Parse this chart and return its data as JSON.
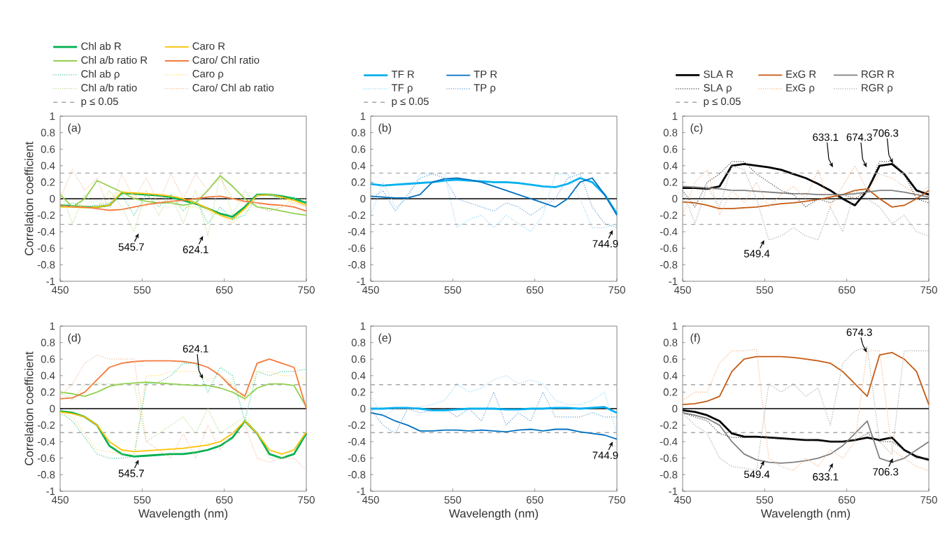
{
  "chart_data": [
    {
      "type": "line",
      "title": "(a)",
      "ylabel": "Correlation coefficient",
      "legend": "top",
      "xlim": [
        450,
        750
      ],
      "ylim": [
        -1,
        1
      ],
      "xticks": [
        450,
        550,
        650,
        750
      ],
      "yticks": [
        -1,
        -0.8,
        -0.6,
        -0.4,
        -0.2,
        0,
        0.2,
        0.4,
        0.6,
        0.8,
        1
      ],
      "x": [
        450,
        465,
        480,
        495,
        510,
        525,
        540,
        555,
        570,
        585,
        600,
        615,
        630,
        645,
        660,
        675,
        690,
        705,
        720,
        735,
        750
      ],
      "series": [
        {
          "name": "Chl ab R",
          "color": "#00b050",
          "line_style": "solid",
          "values": [
            -0.08,
            -0.09,
            -0.1,
            -0.1,
            -0.08,
            0.07,
            0.06,
            0.05,
            0.04,
            0.02,
            -0.02,
            -0.06,
            -0.12,
            -0.18,
            -0.22,
            -0.1,
            0.05,
            0.05,
            0.03,
            0.0,
            -0.05
          ]
        },
        {
          "name": "Caro R",
          "color": "#ffc000",
          "line_style": "solid",
          "values": [
            -0.1,
            -0.1,
            -0.11,
            -0.1,
            -0.08,
            0.08,
            0.07,
            0.06,
            0.05,
            0.03,
            0.0,
            -0.05,
            -0.12,
            -0.2,
            -0.25,
            -0.12,
            0.04,
            0.05,
            0.02,
            -0.02,
            -0.08
          ]
        },
        {
          "name": "Chl a/b ratio R",
          "color": "#92d050",
          "line_style": "solid",
          "values": [
            0.05,
            -0.1,
            0.0,
            0.22,
            0.15,
            0.08,
            0.0,
            -0.03,
            -0.05,
            -0.05,
            -0.08,
            -0.05,
            0.1,
            0.28,
            0.15,
            0.0,
            -0.1,
            -0.12,
            -0.15,
            -0.18,
            -0.2
          ]
        },
        {
          "name": "Caro/ Chl ratio",
          "color": "#f4793b",
          "line_style": "solid",
          "values": [
            -0.08,
            -0.1,
            -0.1,
            -0.12,
            -0.14,
            -0.13,
            -0.1,
            -0.07,
            -0.05,
            -0.03,
            -0.02,
            0.0,
            0.02,
            0.03,
            0.0,
            -0.03,
            -0.05,
            -0.07,
            -0.08,
            -0.1,
            -0.15
          ]
        },
        {
          "name": "Chl ab ρ",
          "color": "#33cc99",
          "line_style": "dotted",
          "values": [
            -0.1,
            -0.05,
            -0.1,
            -0.08,
            -0.05,
            0.05,
            -0.2,
            0.05,
            -0.1,
            0.05,
            -0.15,
            0.0,
            -0.3,
            -0.1,
            -0.25,
            -0.2,
            0.03,
            0.05,
            0.0,
            0.02,
            -0.05
          ]
        },
        {
          "name": "Caro ρ",
          "color": "#ffd966",
          "line_style": "dotted",
          "values": [
            -0.1,
            -0.1,
            -0.08,
            -0.1,
            0.0,
            0.1,
            0.05,
            -0.1,
            0.05,
            -0.05,
            -0.1,
            -0.1,
            -0.15,
            -0.2,
            -0.3,
            -0.15,
            0.05,
            0.03,
            0.0,
            -0.05,
            -0.1
          ]
        },
        {
          "name": "Chl a/b ratio",
          "color": "#b4dc82",
          "line_style": "dotted",
          "values": [
            0.1,
            -0.3,
            0.05,
            -0.1,
            0.1,
            -0.1,
            -0.4,
            0.1,
            -0.2,
            0.05,
            -0.3,
            0.1,
            -0.45,
            0.3,
            -0.2,
            0.1,
            -0.1,
            -0.15,
            -0.1,
            0.0,
            0.0
          ]
        },
        {
          "name": "Caro/ Chl ab ratio",
          "color": "#f8b994",
          "line_style": "dotted",
          "values": [
            0.0,
            0.35,
            0.1,
            0.25,
            -0.15,
            0.3,
            0.0,
            0.25,
            -0.05,
            0.3,
            0.0,
            0.3,
            0.1,
            0.25,
            0.0,
            -0.05,
            -0.05,
            -0.15,
            -0.1,
            -0.05,
            -0.1
          ]
        }
      ],
      "ref_lines": [
        {
          "axis": "y",
          "value": 0,
          "color": "#000000",
          "line_style": "solid"
        },
        {
          "axis": "y",
          "value": 0.31,
          "label": "p ≤ 0.05",
          "color": "#a6a6a6",
          "line_style": "dashed"
        },
        {
          "axis": "y",
          "value": -0.31,
          "color": "#a6a6a6",
          "line_style": "dashed"
        }
      ],
      "annotations": [
        {
          "text": "545.7",
          "x": 545.7,
          "y": -0.42
        },
        {
          "text": "624.1",
          "x": 624.1,
          "y": -0.45
        }
      ]
    },
    {
      "type": "line",
      "title": "(b)",
      "legend": "top",
      "xlim": [
        450,
        750
      ],
      "ylim": [
        -1,
        1
      ],
      "xticks": [
        450,
        550,
        650,
        750
      ],
      "yticks": [
        -1,
        -0.8,
        -0.6,
        -0.4,
        -0.2,
        0,
        0.2,
        0.4,
        0.6,
        0.8,
        1
      ],
      "x": [
        450,
        465,
        480,
        495,
        510,
        525,
        540,
        555,
        570,
        585,
        600,
        615,
        630,
        645,
        660,
        675,
        690,
        705,
        720,
        735,
        750
      ],
      "series": [
        {
          "name": "TF R",
          "color": "#00b0f0",
          "line_style": "solid",
          "values": [
            0.18,
            0.16,
            0.17,
            0.18,
            0.19,
            0.2,
            0.22,
            0.23,
            0.22,
            0.21,
            0.2,
            0.2,
            0.19,
            0.17,
            0.15,
            0.14,
            0.18,
            0.25,
            0.2,
            0.05,
            -0.18
          ]
        },
        {
          "name": "TP R",
          "color": "#0070c0",
          "line_style": "solid",
          "values": [
            0.03,
            0.02,
            0.01,
            0.01,
            0.05,
            0.2,
            0.24,
            0.25,
            0.23,
            0.2,
            0.15,
            0.1,
            0.05,
            0.0,
            -0.05,
            -0.1,
            0.0,
            0.2,
            0.25,
            0.05,
            -0.2
          ]
        },
        {
          "name": "TF ρ",
          "color": "#8fd3f5",
          "line_style": "dotted",
          "values": [
            -0.2,
            0.2,
            -0.1,
            0.0,
            0.3,
            0.3,
            0.3,
            -0.35,
            -0.25,
            -0.2,
            -0.35,
            -0.2,
            -0.3,
            -0.4,
            -0.2,
            0.3,
            0.3,
            0.0,
            -0.35,
            -0.35,
            -0.3
          ]
        },
        {
          "name": "TP ρ",
          "color": "#5b9bd5",
          "line_style": "dotted",
          "values": [
            0.0,
            0.1,
            -0.15,
            0.05,
            0.25,
            0.3,
            0.25,
            0.0,
            -0.05,
            -0.1,
            -0.15,
            -0.05,
            -0.1,
            -0.2,
            -0.1,
            0.0,
            0.25,
            0.3,
            -0.1,
            -0.3,
            -0.35
          ]
        }
      ],
      "ref_lines": [
        {
          "axis": "y",
          "value": 0,
          "color": "#000000",
          "line_style": "solid"
        },
        {
          "axis": "y",
          "value": 0.31,
          "label": "p ≤ 0.05",
          "color": "#a6a6a6",
          "line_style": "dashed"
        },
        {
          "axis": "y",
          "value": -0.31,
          "color": "#a6a6a6",
          "line_style": "dashed"
        }
      ],
      "annotations": [
        {
          "text": "744.9",
          "x": 744.9,
          "y": -0.38
        }
      ]
    },
    {
      "type": "line",
      "title": "(c)",
      "legend": "top",
      "xlim": [
        450,
        750
      ],
      "ylim": [
        -1,
        1
      ],
      "xticks": [
        450,
        550,
        650,
        750
      ],
      "yticks": [
        -1,
        -0.8,
        -0.6,
        -0.4,
        -0.2,
        0,
        0.2,
        0.4,
        0.6,
        0.8,
        1
      ],
      "x": [
        450,
        465,
        480,
        495,
        510,
        525,
        540,
        555,
        570,
        585,
        600,
        615,
        630,
        645,
        660,
        675,
        690,
        705,
        720,
        735,
        750
      ],
      "series": [
        {
          "name": "SLA R",
          "color": "#000000",
          "line_style": "solid",
          "values": [
            0.13,
            0.13,
            0.12,
            0.15,
            0.4,
            0.42,
            0.4,
            0.38,
            0.35,
            0.3,
            0.25,
            0.18,
            0.1,
            0.0,
            -0.08,
            0.1,
            0.4,
            0.42,
            0.3,
            0.1,
            0.05
          ]
        },
        {
          "name": "ExG R",
          "color": "#c55a11",
          "line_style": "solid",
          "values": [
            -0.04,
            -0.05,
            -0.08,
            -0.12,
            -0.12,
            -0.11,
            -0.1,
            -0.08,
            -0.06,
            -0.05,
            -0.03,
            -0.01,
            0.02,
            0.05,
            0.1,
            0.12,
            0.0,
            -0.1,
            -0.08,
            0.0,
            0.1
          ]
        },
        {
          "name": "RGR R",
          "color": "#808080",
          "line_style": "solid",
          "values": [
            0.15,
            0.14,
            0.13,
            0.12,
            0.1,
            0.1,
            0.09,
            0.08,
            0.07,
            0.06,
            0.06,
            0.05,
            0.05,
            0.05,
            0.06,
            0.08,
            0.1,
            0.1,
            0.08,
            0.05,
            0.02
          ]
        },
        {
          "name": "SLA ρ",
          "color": "#404040",
          "line_style": "dotted",
          "values": [
            0.1,
            -0.1,
            0.2,
            0.3,
            0.45,
            0.45,
            0.3,
            0.2,
            0.1,
            0.05,
            -0.1,
            0.0,
            -0.05,
            0.05,
            0.0,
            0.1,
            0.45,
            0.45,
            0.3,
            0.0,
            -0.05
          ]
        },
        {
          "name": "ExG ρ",
          "color": "#f4b183",
          "line_style": "dotted",
          "values": [
            -0.2,
            0.2,
            0.35,
            -0.2,
            0.1,
            -0.05,
            0.2,
            -0.1,
            0.05,
            0.15,
            0.0,
            0.35,
            -0.1,
            0.15,
            0.4,
            0.1,
            0.3,
            0.25,
            0.15,
            0.05,
            0.15
          ]
        },
        {
          "name": "RGR ρ",
          "color": "#a6a6a6",
          "line_style": "dotted",
          "values": [
            0.1,
            -0.3,
            0.15,
            -0.1,
            0.4,
            0.35,
            0.0,
            -0.5,
            -0.45,
            -0.35,
            -0.45,
            -0.5,
            -0.1,
            -0.4,
            0.1,
            0.0,
            -0.1,
            -0.3,
            -0.2,
            -0.4,
            -0.45
          ]
        }
      ],
      "ref_lines": [
        {
          "axis": "y",
          "value": 0,
          "color": "#000000",
          "line_style": "solid"
        },
        {
          "axis": "y",
          "value": 0.31,
          "label": "p ≤ 0.05",
          "color": "#a6a6a6",
          "line_style": "dashed"
        },
        {
          "axis": "y",
          "value": -0.31,
          "color": "#a6a6a6",
          "line_style": "dashed"
        }
      ],
      "annotations": [
        {
          "text": "633.1",
          "x": 633.1,
          "y": 0.38
        },
        {
          "text": "674.3",
          "x": 674.3,
          "y": 0.38
        },
        {
          "text": "706.3",
          "x": 706.3,
          "y": 0.43
        },
        {
          "text": "549.4",
          "x": 549.4,
          "y": -0.5
        }
      ]
    },
    {
      "type": "line",
      "title": "(d)",
      "xlabel": "Wavelength (nm)",
      "ylabel": "Correlation coefficient",
      "xlim": [
        450,
        750
      ],
      "ylim": [
        -1,
        1
      ],
      "xticks": [
        450,
        550,
        650,
        750
      ],
      "yticks": [
        -1,
        -0.8,
        -0.6,
        -0.4,
        -0.2,
        0,
        0.2,
        0.4,
        0.6,
        0.8,
        1
      ],
      "x": [
        450,
        465,
        480,
        495,
        510,
        525,
        540,
        555,
        570,
        585,
        600,
        615,
        630,
        645,
        660,
        675,
        690,
        705,
        720,
        735,
        750
      ],
      "series": [
        {
          "color": "#00b050",
          "line_style": "solid",
          "values": [
            -0.03,
            -0.05,
            -0.1,
            -0.2,
            -0.45,
            -0.55,
            -0.58,
            -0.57,
            -0.56,
            -0.55,
            -0.55,
            -0.53,
            -0.5,
            -0.45,
            -0.35,
            -0.15,
            -0.3,
            -0.55,
            -0.6,
            -0.55,
            -0.3
          ]
        },
        {
          "color": "#ffc000",
          "line_style": "solid",
          "values": [
            -0.04,
            -0.06,
            -0.1,
            -0.2,
            -0.4,
            -0.5,
            -0.52,
            -0.51,
            -0.5,
            -0.49,
            -0.48,
            -0.46,
            -0.44,
            -0.4,
            -0.3,
            -0.15,
            -0.3,
            -0.5,
            -0.55,
            -0.5,
            -0.28
          ]
        },
        {
          "color": "#92d050",
          "line_style": "solid",
          "values": [
            0.2,
            0.18,
            0.15,
            0.2,
            0.27,
            0.3,
            0.31,
            0.32,
            0.31,
            0.3,
            0.29,
            0.28,
            0.28,
            0.25,
            0.2,
            0.12,
            0.25,
            0.3,
            0.3,
            0.28,
            0.02
          ]
        },
        {
          "color": "#f4793b",
          "line_style": "solid",
          "values": [
            0.12,
            0.13,
            0.2,
            0.35,
            0.5,
            0.55,
            0.57,
            0.58,
            0.58,
            0.58,
            0.57,
            0.55,
            0.5,
            0.4,
            0.25,
            0.15,
            0.55,
            0.6,
            0.55,
            0.5,
            0.0
          ]
        },
        {
          "color": "#33cc99",
          "line_style": "dotted",
          "values": [
            -0.05,
            -0.15,
            -0.35,
            -0.55,
            -0.6,
            -0.6,
            -0.58,
            0.3,
            0.32,
            0.4,
            0.55,
            0.55,
            0.2,
            0.5,
            0.4,
            -0.15,
            0.45,
            0.4,
            0.45,
            0.45,
            0.48
          ]
        },
        {
          "color": "#ffd966",
          "line_style": "dotted",
          "values": [
            -0.05,
            -0.1,
            -0.3,
            -0.5,
            -0.52,
            -0.55,
            -0.55,
            0.4,
            0.4,
            0.45,
            0.45,
            0.45,
            0.35,
            0.4,
            0.3,
            0.1,
            0.45,
            0.45,
            0.4,
            0.4,
            0.35
          ]
        },
        {
          "color": "#b4dc82",
          "line_style": "dotted",
          "values": [
            0.2,
            0.1,
            0.3,
            0.3,
            0.3,
            0.3,
            0.3,
            -0.4,
            -0.3,
            -0.2,
            -0.1,
            -0.3,
            0.0,
            -0.3,
            -0.2,
            -0.1,
            -0.3,
            -0.6,
            -0.6,
            -0.5,
            -0.3
          ]
        },
        {
          "color": "#f8b994",
          "line_style": "dotted",
          "values": [
            0.15,
            0.3,
            0.55,
            0.65,
            0.6,
            0.6,
            0.6,
            -0.4,
            -0.5,
            -0.6,
            -0.3,
            -0.6,
            -0.2,
            -0.5,
            -0.3,
            -0.2,
            -0.6,
            -0.65,
            -0.6,
            -0.6,
            -0.75
          ]
        }
      ],
      "ref_lines": [
        {
          "axis": "y",
          "value": 0,
          "color": "#000000",
          "line_style": "solid"
        },
        {
          "axis": "y",
          "value": 0.29,
          "color": "#a6a6a6",
          "line_style": "dashed"
        },
        {
          "axis": "y",
          "value": -0.29,
          "color": "#a6a6a6",
          "line_style": "dashed"
        }
      ],
      "annotations": [
        {
          "text": "624.1",
          "x": 624.1,
          "y": 0.36
        },
        {
          "text": "545.7",
          "x": 545.7,
          "y": -0.62
        }
      ]
    },
    {
      "type": "line",
      "title": "(e)",
      "xlabel": "Wavelength (nm)",
      "xlim": [
        450,
        750
      ],
      "ylim": [
        -1,
        1
      ],
      "xticks": [
        450,
        550,
        650,
        750
      ],
      "yticks": [
        -1,
        -0.8,
        -0.6,
        -0.4,
        -0.2,
        0,
        0.2,
        0.4,
        0.6,
        0.8,
        1
      ],
      "x": [
        450,
        465,
        480,
        495,
        510,
        525,
        540,
        555,
        570,
        585,
        600,
        615,
        630,
        645,
        660,
        675,
        690,
        705,
        720,
        735,
        750
      ],
      "series": [
        {
          "color": "#00b0f0",
          "line_style": "solid",
          "values": [
            0.0,
            0.0,
            0.01,
            0.01,
            0.0,
            -0.02,
            -0.02,
            -0.01,
            0.0,
            0.0,
            0.0,
            -0.01,
            -0.01,
            0.0,
            0.0,
            0.01,
            0.01,
            0.0,
            0.01,
            0.02,
            -0.05
          ]
        },
        {
          "color": "#0070c0",
          "line_style": "solid",
          "values": [
            -0.05,
            -0.08,
            -0.15,
            -0.2,
            -0.27,
            -0.27,
            -0.26,
            -0.26,
            -0.27,
            -0.26,
            -0.27,
            -0.28,
            -0.26,
            -0.25,
            -0.27,
            -0.25,
            -0.25,
            -0.28,
            -0.3,
            -0.32,
            -0.37
          ]
        },
        {
          "color": "#8fd3f5",
          "line_style": "dotted",
          "values": [
            0.15,
            -0.1,
            0.0,
            0.0,
            0.02,
            0.05,
            0.1,
            0.3,
            0.2,
            0.25,
            0.35,
            0.4,
            0.3,
            0.35,
            0.3,
            0.1,
            0.05,
            0.05,
            0.1,
            0.2,
            -0.3
          ]
        },
        {
          "color": "#5b9bd5",
          "line_style": "dotted",
          "values": [
            0.0,
            -0.2,
            -0.3,
            0.0,
            -0.05,
            -0.02,
            0.0,
            -0.1,
            0.0,
            -0.15,
            0.2,
            -0.2,
            -0.05,
            -0.15,
            0.2,
            -0.1,
            -0.1,
            -0.1,
            -0.05,
            -0.1,
            -0.1
          ]
        }
      ],
      "ref_lines": [
        {
          "axis": "y",
          "value": 0,
          "color": "#000000",
          "line_style": "solid"
        },
        {
          "axis": "y",
          "value": 0.29,
          "color": "#a6a6a6",
          "line_style": "dashed"
        },
        {
          "axis": "y",
          "value": -0.29,
          "color": "#a6a6a6",
          "line_style": "dashed"
        }
      ],
      "annotations": [
        {
          "text": "744.9",
          "x": 744.9,
          "y": -0.4
        }
      ]
    },
    {
      "type": "line",
      "title": "(f)",
      "xlabel": "Wavelength (nm)",
      "xlim": [
        450,
        750
      ],
      "ylim": [
        -1,
        1
      ],
      "xticks": [
        450,
        550,
        650,
        750
      ],
      "yticks": [
        -1,
        -0.8,
        -0.6,
        -0.4,
        -0.2,
        0,
        0.2,
        0.4,
        0.6,
        0.8,
        1
      ],
      "x": [
        450,
        465,
        480,
        495,
        510,
        525,
        540,
        555,
        570,
        585,
        600,
        615,
        630,
        645,
        660,
        675,
        690,
        705,
        720,
        735,
        750
      ],
      "series": [
        {
          "color": "#000000",
          "line_style": "solid",
          "values": [
            -0.02,
            -0.04,
            -0.08,
            -0.15,
            -0.3,
            -0.34,
            -0.34,
            -0.35,
            -0.36,
            -0.37,
            -0.38,
            -0.38,
            -0.4,
            -0.4,
            -0.38,
            -0.35,
            -0.38,
            -0.35,
            -0.5,
            -0.58,
            -0.62
          ]
        },
        {
          "color": "#c55a11",
          "line_style": "solid",
          "values": [
            0.05,
            0.06,
            0.09,
            0.15,
            0.45,
            0.6,
            0.63,
            0.63,
            0.63,
            0.62,
            0.6,
            0.58,
            0.55,
            0.45,
            0.3,
            0.15,
            0.65,
            0.68,
            0.6,
            0.45,
            0.05
          ]
        },
        {
          "color": "#808080",
          "line_style": "solid",
          "values": [
            -0.05,
            -0.08,
            -0.12,
            -0.2,
            -0.4,
            -0.55,
            -0.62,
            -0.65,
            -0.66,
            -0.65,
            -0.63,
            -0.6,
            -0.55,
            -0.45,
            -0.3,
            -0.15,
            -0.6,
            -0.65,
            -0.6,
            -0.5,
            -0.4
          ]
        },
        {
          "color": "#404040",
          "line_style": "dotted",
          "values": [
            -0.05,
            -0.1,
            -0.15,
            -0.3,
            -0.35,
            -0.35,
            -0.35,
            -0.35,
            -0.37,
            -0.37,
            -0.38,
            -0.39,
            -0.4,
            -0.4,
            -0.38,
            -0.3,
            -0.4,
            -0.4,
            -0.5,
            -0.6,
            -0.6
          ]
        },
        {
          "color": "#f4b183",
          "line_style": "dotted",
          "values": [
            0.1,
            0.2,
            0.2,
            0.55,
            0.7,
            0.7,
            0.72,
            -0.6,
            -0.7,
            -0.75,
            -0.6,
            -0.7,
            -0.5,
            -0.6,
            -0.4,
            0.7,
            0.7,
            -0.5,
            -0.6,
            -0.7,
            -0.75
          ]
        },
        {
          "color": "#a6a6a6",
          "line_style": "dotted",
          "values": [
            -0.05,
            -0.2,
            -0.3,
            -0.6,
            -0.7,
            -0.72,
            -0.75,
            0.3,
            0.2,
            0.3,
            0.15,
            0.25,
            -0.2,
            0.55,
            0.7,
            0.75,
            -0.4,
            -0.55,
            0.7,
            0.7,
            0.7
          ]
        }
      ],
      "ref_lines": [
        {
          "axis": "y",
          "value": 0,
          "color": "#000000",
          "line_style": "solid"
        },
        {
          "axis": "y",
          "value": 0.29,
          "color": "#a6a6a6",
          "line_style": "dashed"
        },
        {
          "axis": "y",
          "value": -0.29,
          "color": "#a6a6a6",
          "line_style": "dashed"
        }
      ],
      "annotations": [
        {
          "text": "674.3",
          "x": 674.3,
          "y": 0.68
        },
        {
          "text": "549.4",
          "x": 549.4,
          "y": -0.63
        },
        {
          "text": "633.1",
          "x": 633.1,
          "y": -0.66
        },
        {
          "text": "706.3",
          "x": 706.3,
          "y": -0.6
        }
      ]
    }
  ]
}
